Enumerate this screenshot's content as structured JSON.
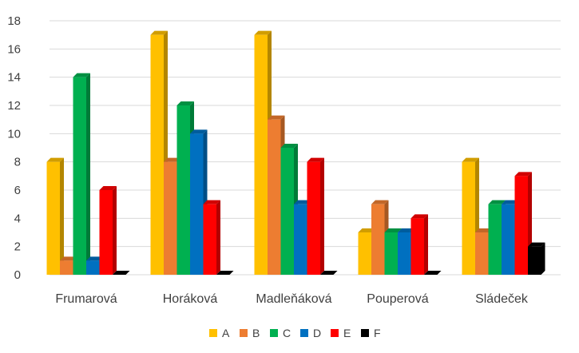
{
  "chart_data": {
    "type": "bar",
    "categories": [
      "Frumarová",
      "Horáková",
      "Madleňáková",
      "Pouperová",
      "Sládeček"
    ],
    "series": [
      {
        "name": "A",
        "color": "#FFC000",
        "values": [
          8,
          17,
          17,
          3,
          8
        ]
      },
      {
        "name": "B",
        "color": "#ED7D31",
        "values": [
          1,
          8,
          11,
          5,
          3
        ]
      },
      {
        "name": "C",
        "color": "#00B050",
        "values": [
          14,
          12,
          9,
          3,
          5
        ]
      },
      {
        "name": "D",
        "color": "#0070C0",
        "values": [
          1,
          10,
          5,
          3,
          5
        ]
      },
      {
        "name": "E",
        "color": "#FF0000",
        "values": [
          6,
          5,
          8,
          4,
          7
        ]
      },
      {
        "name": "F",
        "color": "#000000",
        "values": [
          0,
          0,
          0,
          0,
          2
        ]
      }
    ],
    "ylim": [
      0,
      18
    ],
    "y_ticks": [
      "0",
      "2",
      "4",
      "6",
      "8",
      "10",
      "12",
      "14",
      "16",
      "18"
    ],
    "grid": true,
    "legend_position": "bottom",
    "style": "3d-columns"
  }
}
